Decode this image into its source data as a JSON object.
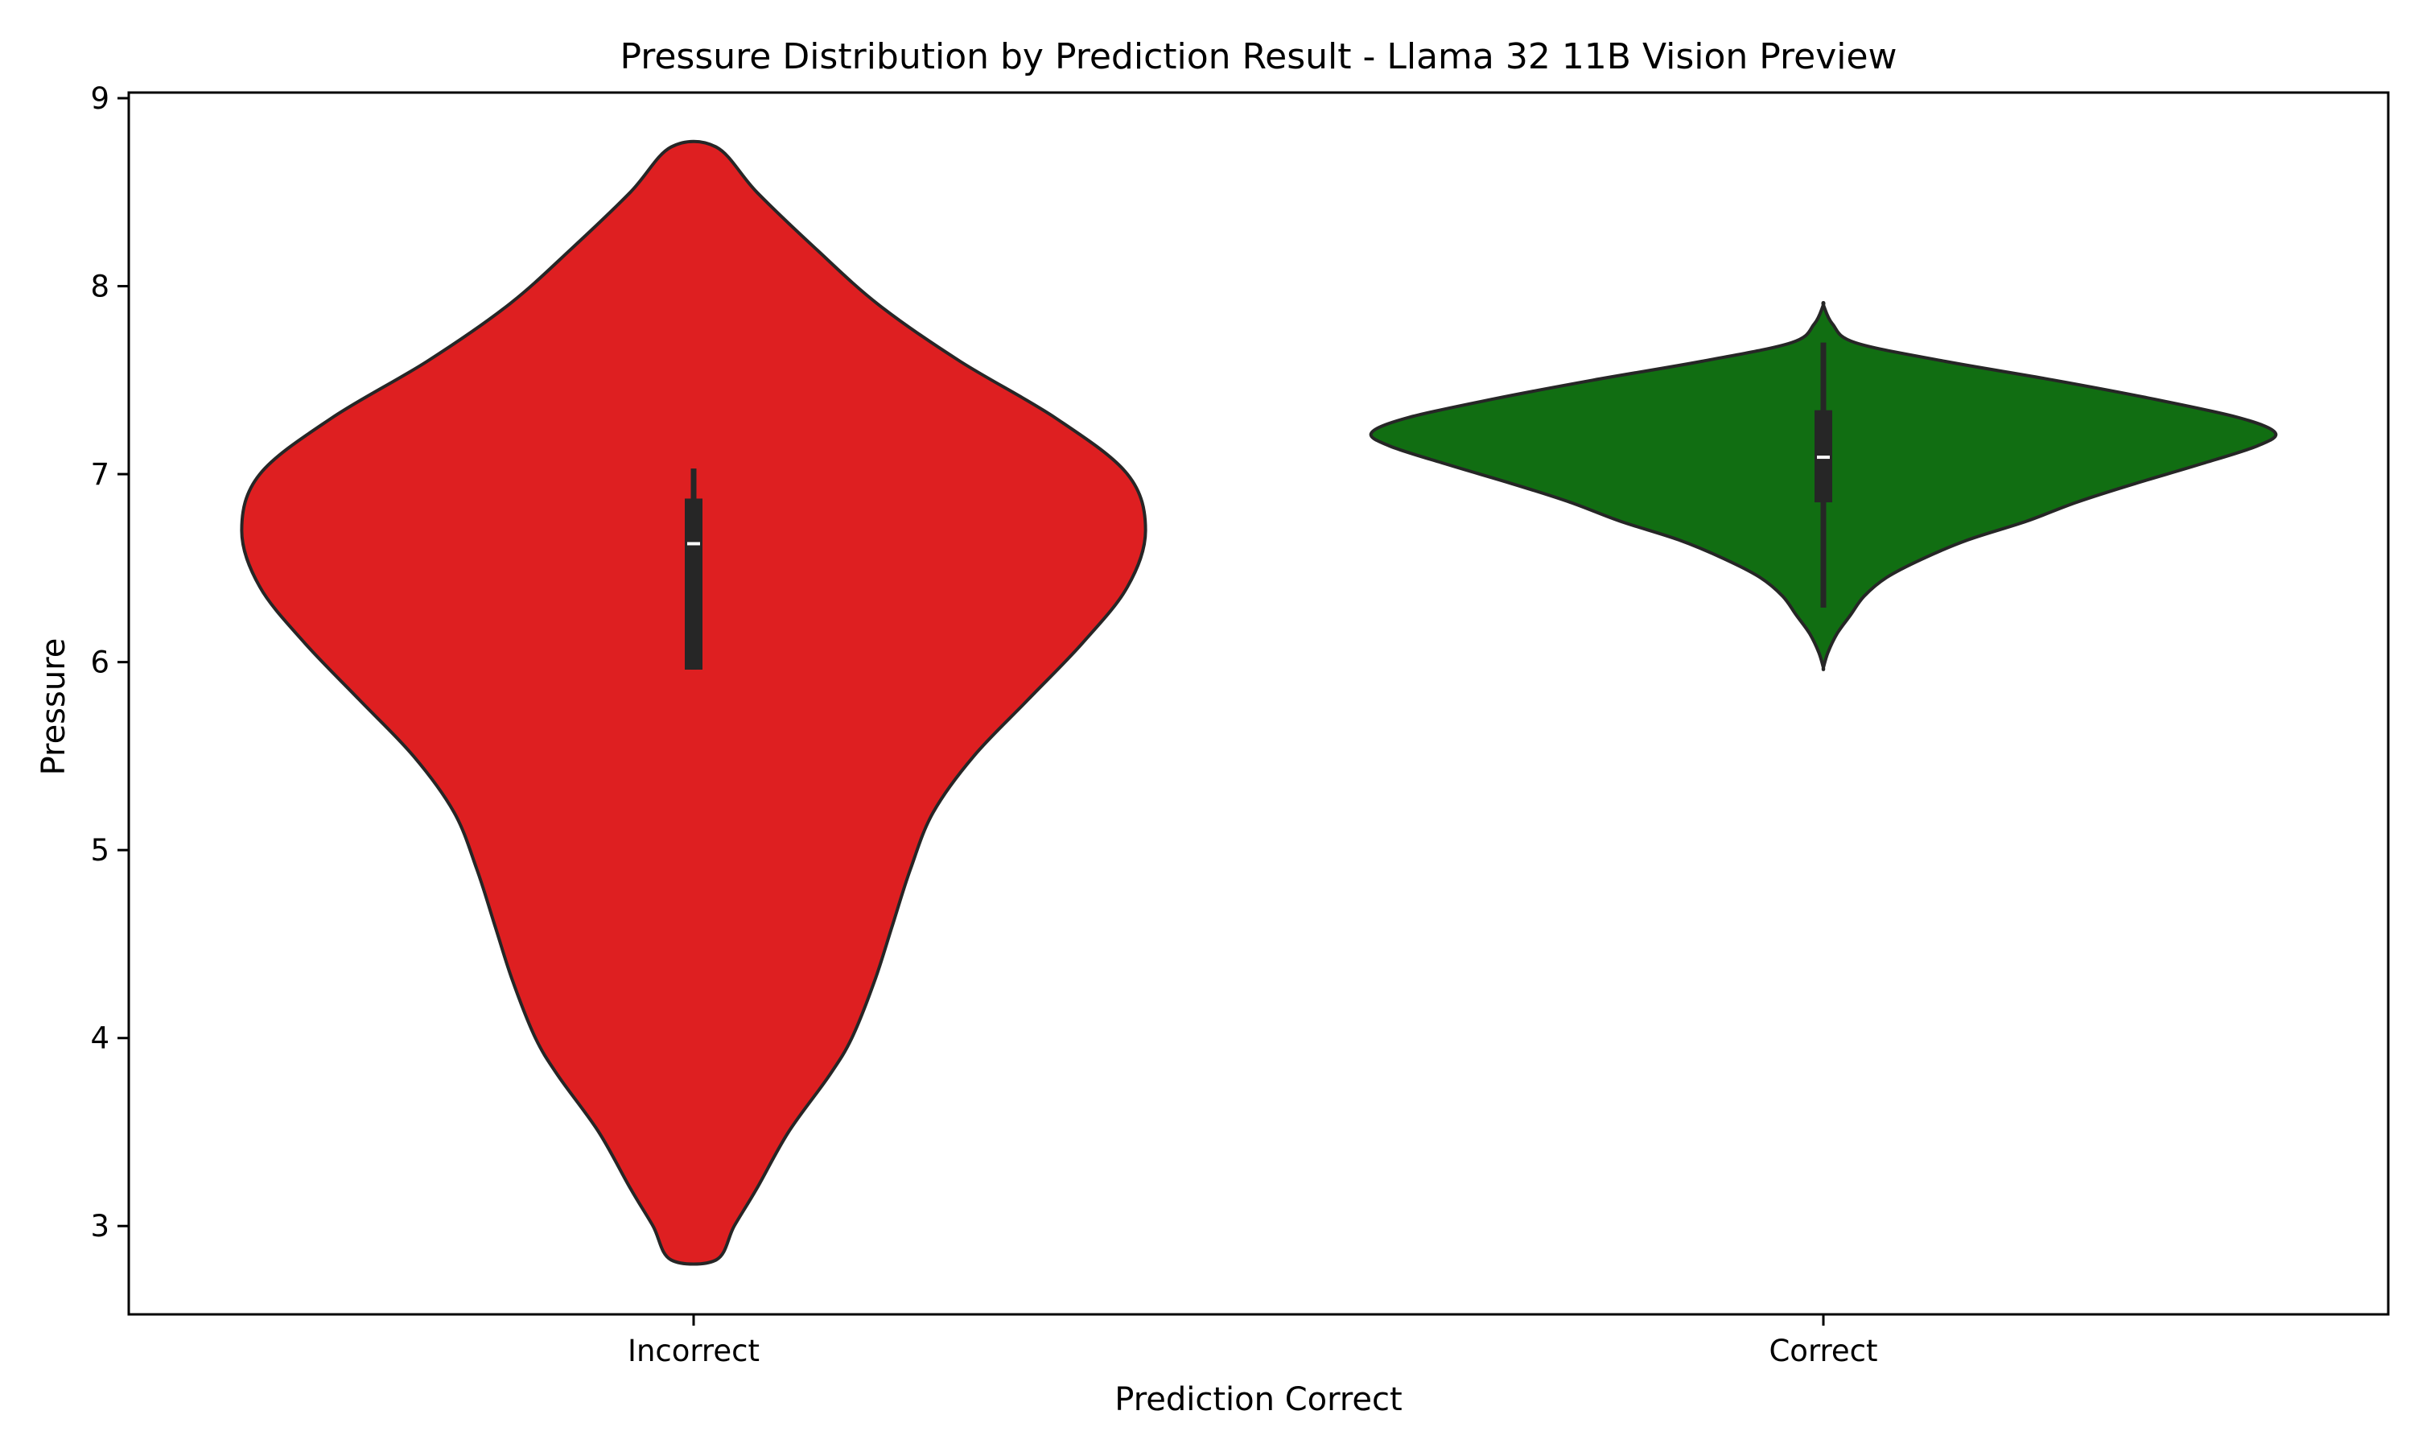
{
  "chart_data": {
    "type": "violin",
    "title": "Pressure Distribution by Prediction Result - Llama 32 11B Vision Preview",
    "xlabel": "Prediction Correct",
    "ylabel": "Pressure",
    "categories": [
      "Incorrect",
      "Correct"
    ],
    "ylim": [
      2.53,
      9.03
    ],
    "yticks": [
      3,
      4,
      5,
      6,
      7,
      8,
      9
    ],
    "ytick_labels": [
      "3",
      "4",
      "5",
      "6",
      "7",
      "8",
      "9"
    ],
    "grid": false,
    "legend": "none",
    "series": [
      {
        "category": "Incorrect",
        "color": "#de1f21",
        "range": [
          2.82,
          8.74
        ],
        "quartiles": [
          5.96,
          6.63,
          6.87
        ],
        "whisker": [
          5.96,
          7.03
        ],
        "relative_density": [
          [
            2.82,
            0.05
          ],
          [
            3.0,
            0.09
          ],
          [
            3.2,
            0.14
          ],
          [
            3.5,
            0.21
          ],
          [
            3.8,
            0.3
          ],
          [
            4.0,
            0.35
          ],
          [
            4.3,
            0.4
          ],
          [
            4.6,
            0.44
          ],
          [
            4.9,
            0.48
          ],
          [
            5.2,
            0.53
          ],
          [
            5.5,
            0.62
          ],
          [
            5.8,
            0.74
          ],
          [
            6.1,
            0.86
          ],
          [
            6.4,
            0.96
          ],
          [
            6.7,
            1.0
          ],
          [
            7.0,
            0.96
          ],
          [
            7.3,
            0.8
          ],
          [
            7.6,
            0.59
          ],
          [
            7.9,
            0.41
          ],
          [
            8.2,
            0.27
          ],
          [
            8.5,
            0.14
          ],
          [
            8.74,
            0.05
          ]
        ]
      },
      {
        "category": "Correct",
        "color": "#116e12",
        "range": [
          5.97,
          7.9
        ],
        "quartiles": [
          6.85,
          7.09,
          7.34
        ],
        "whisker": [
          6.29,
          7.7
        ],
        "relative_density": [
          [
            5.97,
            0.0
          ],
          [
            6.05,
            0.01
          ],
          [
            6.15,
            0.03
          ],
          [
            6.25,
            0.06
          ],
          [
            6.35,
            0.09
          ],
          [
            6.45,
            0.14
          ],
          [
            6.55,
            0.22
          ],
          [
            6.65,
            0.32
          ],
          [
            6.75,
            0.45
          ],
          [
            6.85,
            0.56
          ],
          [
            6.95,
            0.69
          ],
          [
            7.05,
            0.83
          ],
          [
            7.15,
            0.96
          ],
          [
            7.22,
            1.0
          ],
          [
            7.3,
            0.92
          ],
          [
            7.4,
            0.73
          ],
          [
            7.5,
            0.51
          ],
          [
            7.6,
            0.27
          ],
          [
            7.7,
            0.07
          ],
          [
            7.8,
            0.02
          ],
          [
            7.9,
            0.0
          ]
        ]
      }
    ]
  }
}
